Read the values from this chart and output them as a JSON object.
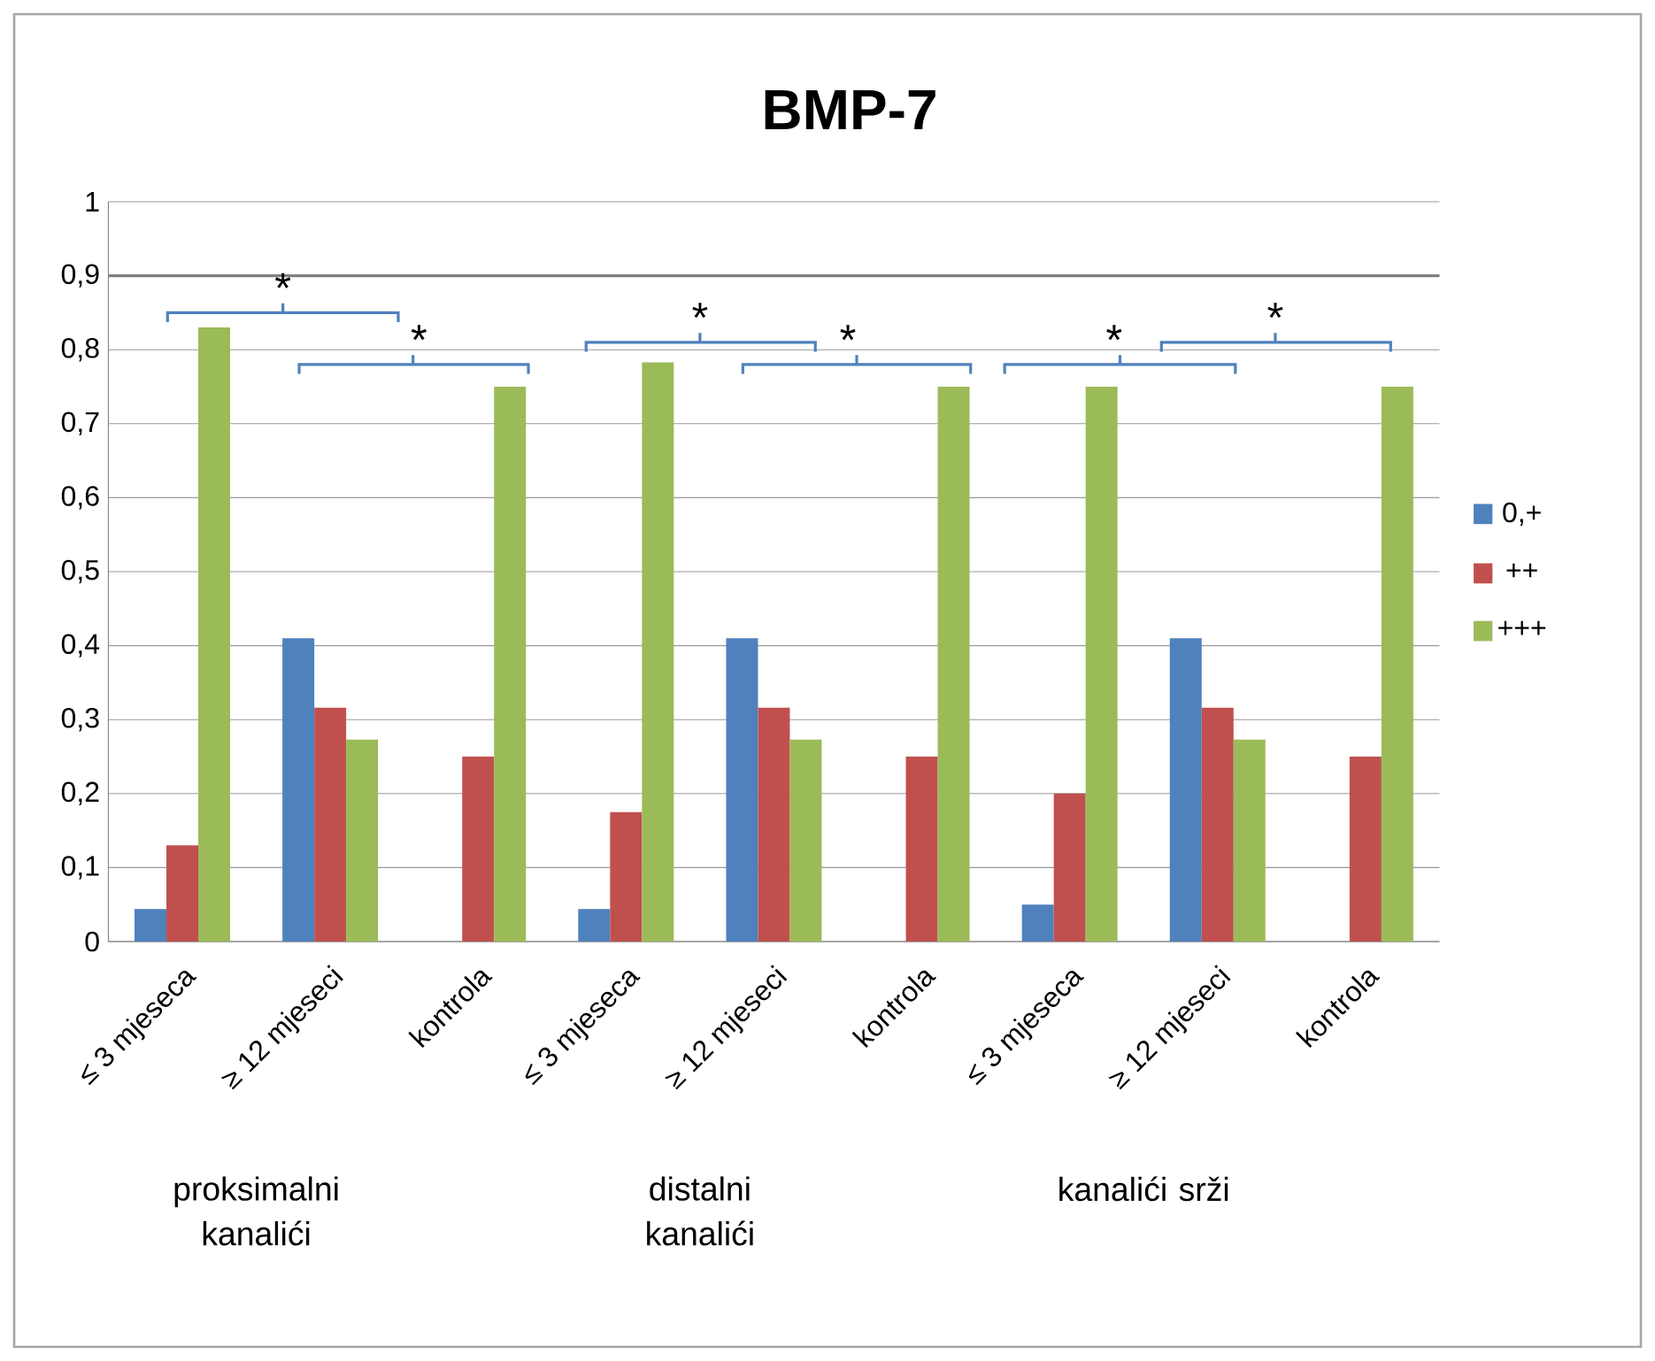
{
  "chart_data": {
    "type": "bar",
    "title": "BMP-7",
    "categories": [
      "≤ 3 mjeseca",
      "≥ 12 mjeseci",
      "kontrola",
      "≤ 3 mjeseca",
      "≥ 12 mjeseci",
      "kontrola",
      "≤ 3 mjeseca",
      "≥ 12 mjeseci",
      "kontrola"
    ],
    "series": [
      {
        "name": "0,+",
        "color": "#4f81bd",
        "values": [
          0.044,
          0.41,
          0,
          0.044,
          0.41,
          0,
          0.05,
          0.41,
          0
        ]
      },
      {
        "name": "++",
        "color": "#c0504d",
        "values": [
          0.13,
          0.316,
          0.25,
          0.175,
          0.316,
          0.25,
          0.2,
          0.316,
          0.25
        ]
      },
      {
        "name": "+++",
        "color": "#9bbb59",
        "values": [
          0.83,
          0.273,
          0.75,
          0.783,
          0.273,
          0.75,
          0.75,
          0.273,
          0.75
        ]
      }
    ],
    "ylim": [
      0,
      1
    ],
    "yticks": [
      {
        "value": 0,
        "label": "0"
      },
      {
        "value": 0.1,
        "label": "0,1"
      },
      {
        "value": 0.2,
        "label": "0,2"
      },
      {
        "value": 0.3,
        "label": "0,3"
      },
      {
        "value": 0.4,
        "label": "0,4"
      },
      {
        "value": 0.5,
        "label": "0,5"
      },
      {
        "value": 0.6,
        "label": "0,6"
      },
      {
        "value": 0.7,
        "label": "0,7"
      },
      {
        "value": 0.8,
        "label": "0,8"
      },
      {
        "value": 0.9,
        "label": "0,9"
      },
      {
        "value": 1,
        "label": "1"
      }
    ],
    "grid": "y",
    "ref_lines": [
      {
        "axis": "y",
        "value": 0.9,
        "color": "#808080"
      }
    ],
    "legend": "right",
    "annotations": [
      "*",
      "*",
      "*",
      "*",
      "*",
      "*",
      "proksimalni kanalići",
      "distalni kanalići",
      "kanalići srži"
    ]
  }
}
